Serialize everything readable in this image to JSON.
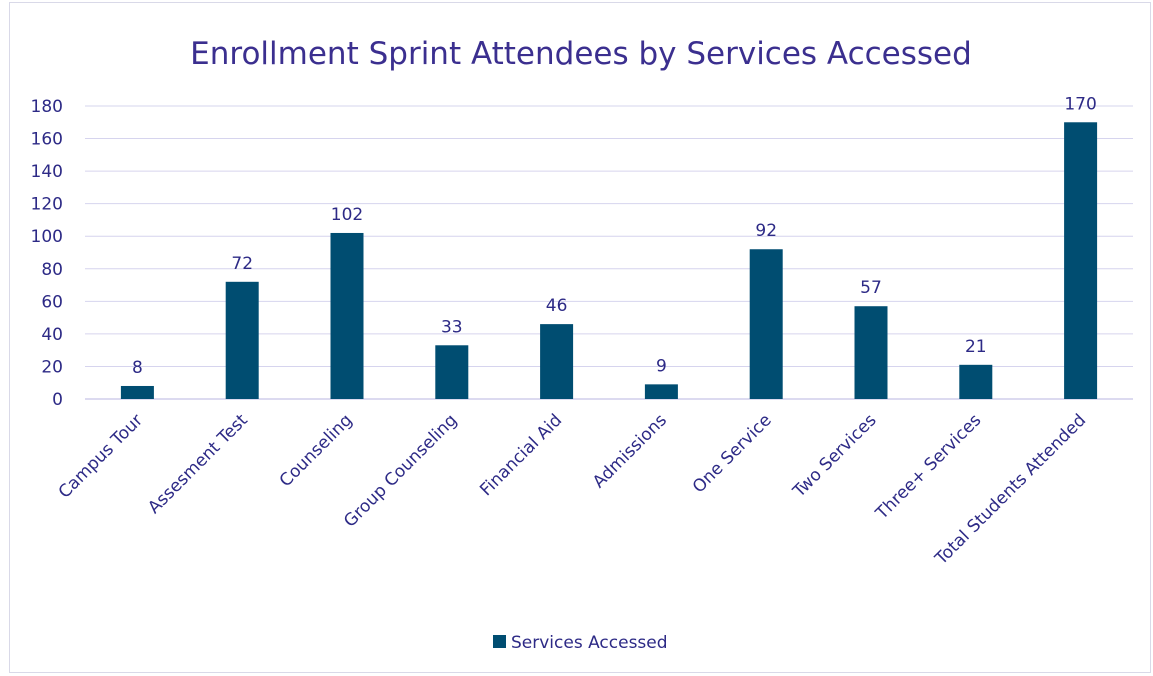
{
  "chart_data": {
    "type": "bar",
    "title": "Enrollment Sprint Attendees by Services Accessed",
    "categories": [
      "Campus Tour",
      "Assesment Test",
      "Counseling",
      "Group Counseling",
      "Financial Aid",
      "Admissions",
      "One Service",
      "Two Services",
      "Three+ Services",
      "Total Students Attended"
    ],
    "series": [
      {
        "name": "Services Accessed",
        "values": [
          8,
          72,
          102,
          33,
          46,
          9,
          92,
          57,
          21,
          170
        ],
        "color": "#004d71"
      }
    ],
    "ylim": [
      0,
      180
    ],
    "yticks": [
      0,
      20,
      40,
      60,
      80,
      100,
      120,
      140,
      160,
      180
    ],
    "ytick_labels": [
      "0",
      "20",
      "40",
      "60",
      "80",
      "100",
      "120",
      "140",
      "160",
      "180"
    ],
    "xlabel": "",
    "ylabel": "",
    "grid": true,
    "legend_position": "bottom",
    "data_labels": true,
    "colors": {
      "text": "#2d2a86",
      "title": "#3b2f8f",
      "grid": "#d6d4ee"
    }
  }
}
